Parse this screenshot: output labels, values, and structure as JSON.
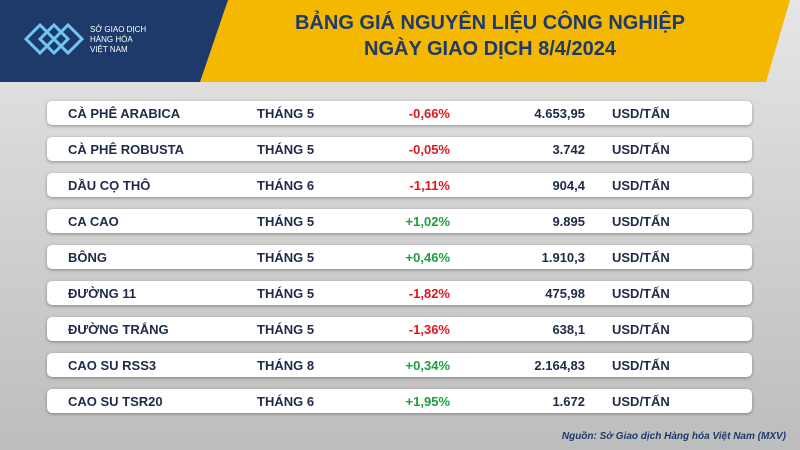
{
  "header": {
    "title_lines": [
      "BẢNG GIÁ NGUYÊN LIỆU CÔNG NGHIỆP",
      "NGÀY GIAO DỊCH 8/4/2024"
    ],
    "logo_lines": [
      "SỞ GIAO DỊCH",
      "HÀNG HÓA",
      "VIỆT NAM"
    ]
  },
  "table": {
    "rows": [
      [
        "CÀ PHÊ ARABICA",
        "THÁNG 5",
        "-0,66%",
        "4.653,95",
        "USD/TẤN"
      ],
      [
        "CÀ PHÊ ROBUSTA",
        "THÁNG 5",
        "-0,05%",
        "3.742",
        "USD/TẤN"
      ],
      [
        "DẦU CỌ THÔ",
        "THÁNG 6",
        "-1,11%",
        "904,4",
        "USD/TẤN"
      ],
      [
        "CA CAO",
        "THÁNG 5",
        "+1,02%",
        "9.895",
        "USD/TẤN"
      ],
      [
        "BÔNG",
        "THÁNG 5",
        "+0,46%",
        "1.910,3",
        "USD/TẤN"
      ],
      [
        "ĐƯỜNG 11",
        "THÁNG 5",
        "-1,82%",
        "475,98",
        "USD/TẤN"
      ],
      [
        "ĐƯỜNG TRẮNG",
        "THÁNG 5",
        "-1,36%",
        "638,1",
        "USD/TẤN"
      ],
      [
        "CAO SU RSS3",
        "THÁNG 8",
        "+0,34%",
        "2.164,83",
        "USD/TẤN"
      ],
      [
        "CAO SU TSR20",
        "THÁNG 6",
        "+1,95%",
        "1.672",
        "USD/TẤN"
      ]
    ]
  },
  "footer": {
    "source": "Nguồn: Sở Giao dịch Hàng hóa Việt Nam (MXV)"
  }
}
